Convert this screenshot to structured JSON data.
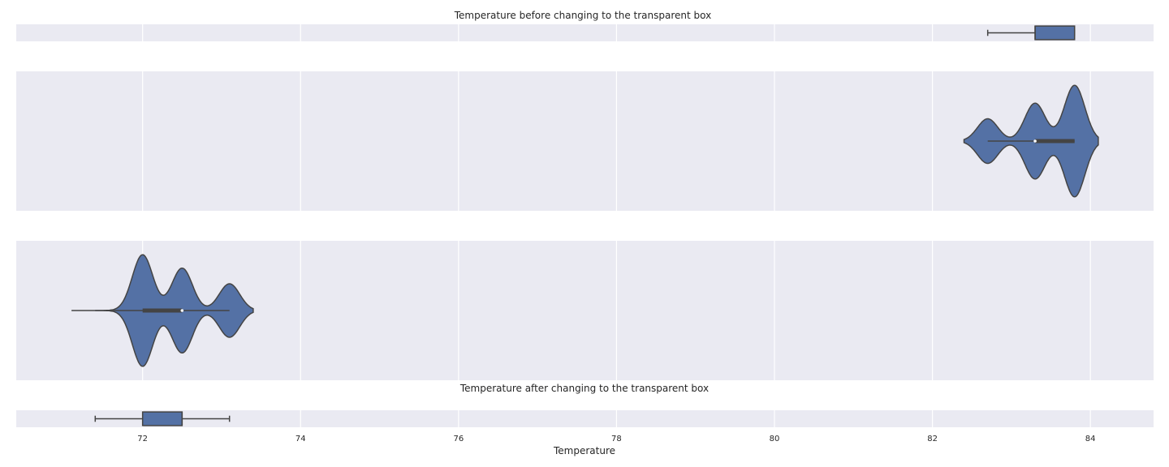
{
  "colors": {
    "axes_bg": "#eaeaf2",
    "grid": "#ffffff",
    "box_fill": "#5471a5",
    "line": "#444444",
    "text": "#262626"
  },
  "chart_data": [
    {
      "type": "box",
      "title": "Temperature before changing to the transparent box",
      "orientation": "horizontal",
      "whisker_low": 82.7,
      "q1": 83.3,
      "median": 83.3,
      "q3": 83.8,
      "whisker_high": 83.8,
      "xlim": [
        70.4,
        84.8
      ],
      "grid": true
    },
    {
      "type": "violin",
      "title": "",
      "orientation": "horizontal",
      "min": 82.4,
      "max": 84.1,
      "inner_box": {
        "whisker_low": 82.7,
        "q1": 83.3,
        "median": 83.3,
        "q3": 83.8,
        "whisker_high": 83.8
      },
      "peaks": [
        {
          "x": 82.7,
          "rel": 0.2
        },
        {
          "x": 83.3,
          "rel": 0.34
        },
        {
          "x": 83.8,
          "rel": 0.5
        }
      ],
      "xlim": [
        70.4,
        84.8
      ],
      "grid": true
    },
    {
      "type": "violin",
      "title": "",
      "orientation": "horizontal",
      "min": 71.1,
      "max": 73.4,
      "inner_box": {
        "whisker_low": 71.4,
        "q1": 72.0,
        "median": 72.5,
        "q3": 72.5,
        "whisker_high": 73.1
      },
      "peaks": [
        {
          "x": 72.0,
          "rel": 0.5
        },
        {
          "x": 72.5,
          "rel": 0.38
        },
        {
          "x": 73.1,
          "rel": 0.24
        }
      ],
      "xlim": [
        70.4,
        84.8
      ],
      "grid": true
    },
    {
      "type": "box",
      "title": "Temperature after changing to the transparent box",
      "orientation": "horizontal",
      "whisker_low": 71.4,
      "q1": 72.0,
      "median": 72.5,
      "q3": 72.5,
      "whisker_high": 73.1,
      "xlim": [
        70.4,
        84.8
      ],
      "grid": true,
      "xlabel": "Temperature",
      "xticks": [
        "72",
        "74",
        "76",
        "78",
        "80",
        "82",
        "84"
      ]
    }
  ]
}
